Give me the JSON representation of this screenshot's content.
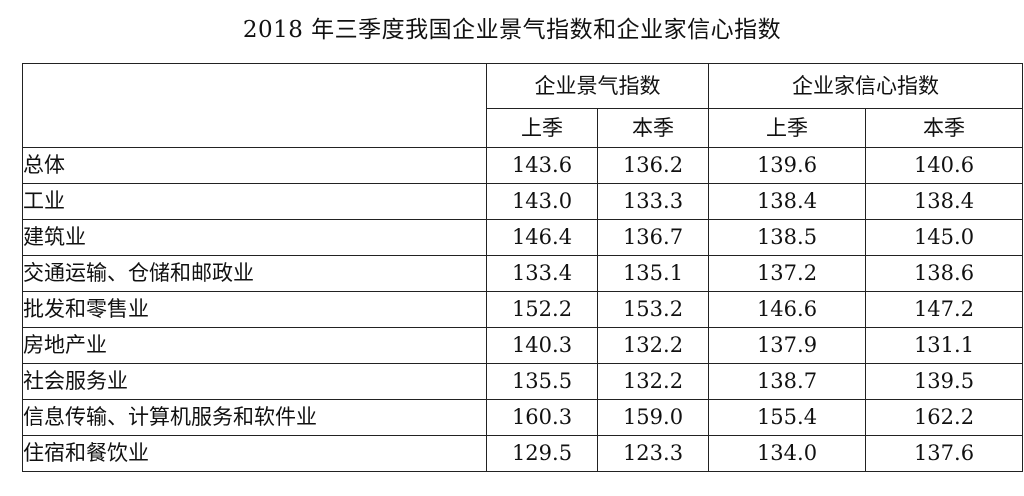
{
  "title": "2018 年三季度我国企业景气指数和企业家信心指数",
  "header": {
    "group1": "企业景气指数",
    "group2": "企业家信心指数",
    "sub": [
      "上季",
      "本季",
      "上季",
      "本季"
    ]
  },
  "rows": [
    {
      "label": "总体",
      "values": [
        "143.6",
        "136.2",
        "139.6",
        "140.6"
      ]
    },
    {
      "label": "工业",
      "values": [
        "143.0",
        "133.3",
        "138.4",
        "138.4"
      ]
    },
    {
      "label": "建筑业",
      "values": [
        "146.4",
        "136.7",
        "138.5",
        "145.0"
      ]
    },
    {
      "label": "交通运输、仓储和邮政业",
      "values": [
        "133.4",
        "135.1",
        "137.2",
        "138.6"
      ]
    },
    {
      "label": "批发和零售业",
      "values": [
        "152.2",
        "153.2",
        "146.6",
        "147.2"
      ]
    },
    {
      "label": "房地产业",
      "values": [
        "140.3",
        "132.2",
        "137.9",
        "131.1"
      ]
    },
    {
      "label": "社会服务业",
      "values": [
        "135.5",
        "132.2",
        "138.7",
        "139.5"
      ]
    },
    {
      "label": "信息传输、计算机服务和软件业",
      "values": [
        "160.3",
        "159.0",
        "155.4",
        "162.2"
      ]
    },
    {
      "label": "住宿和餐饮业",
      "values": [
        "129.5",
        "123.3",
        "134.0",
        "137.6"
      ]
    }
  ]
}
